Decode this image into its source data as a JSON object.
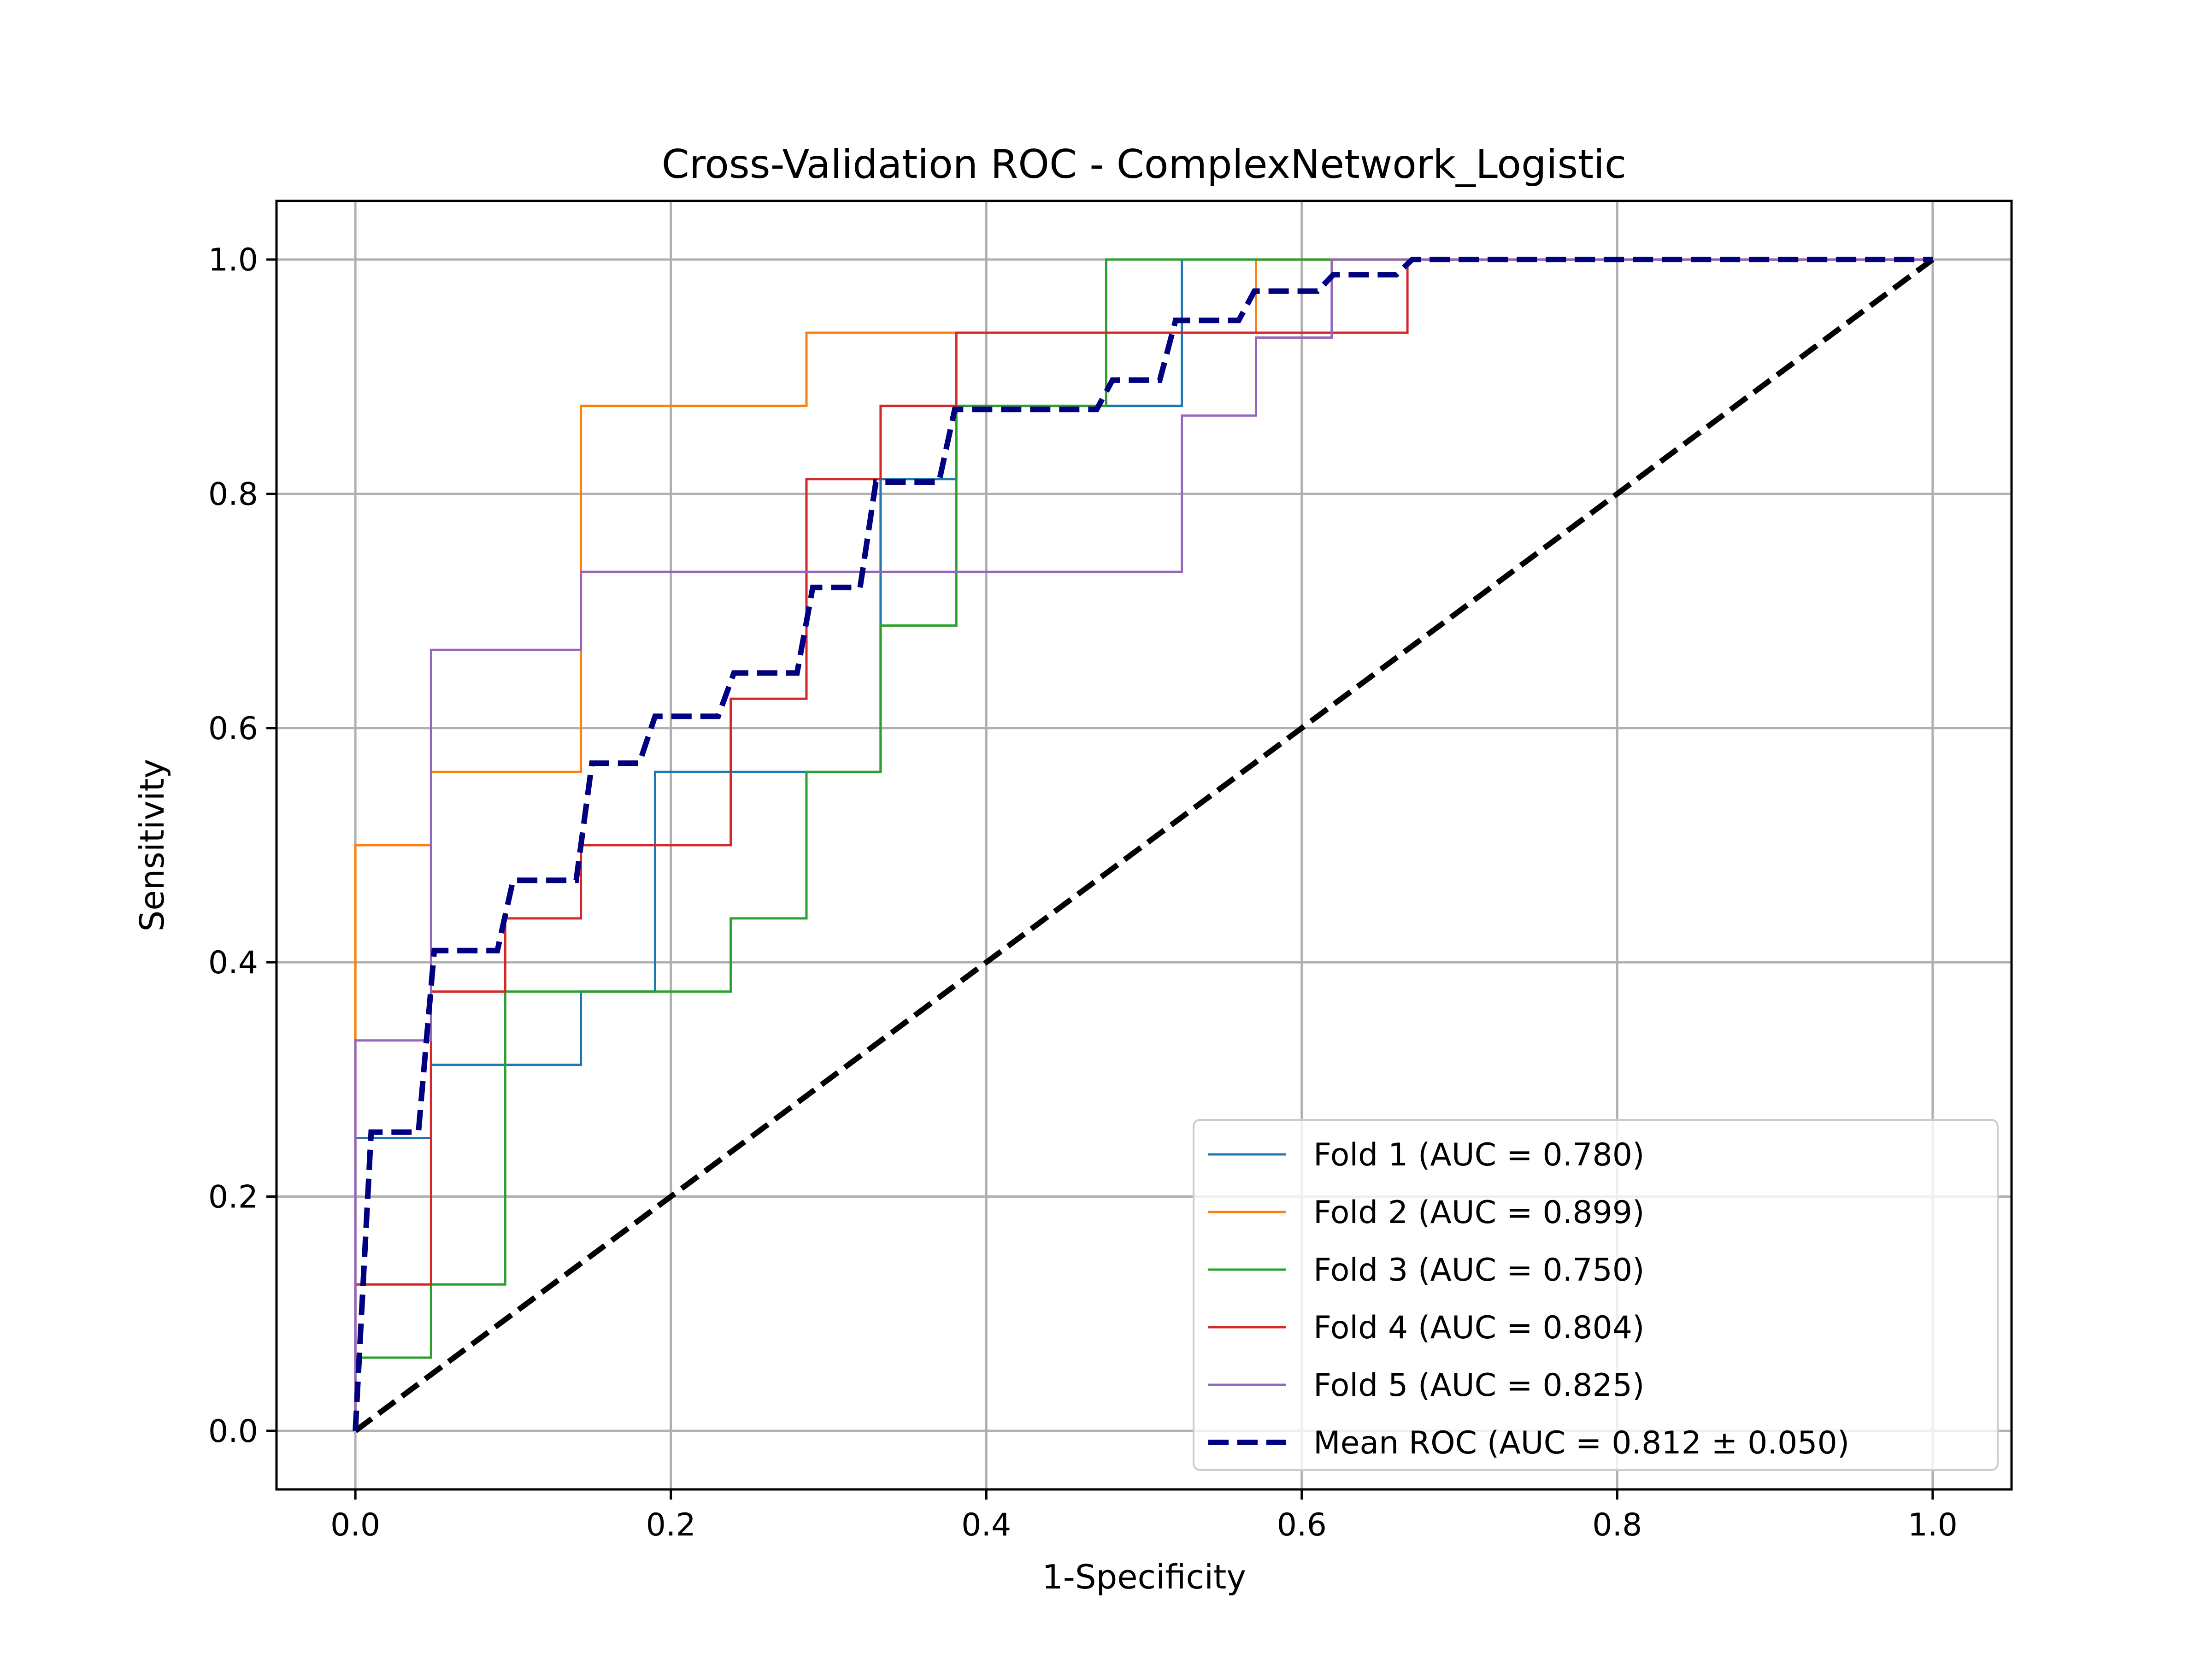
{
  "chart_data": {
    "type": "line",
    "title": "Cross-Validation ROC - ComplexNetwork_Logistic",
    "xlabel": "1-Specificity",
    "ylabel": "Sensitivity",
    "xlim": [
      -0.05,
      1.05
    ],
    "ylim": [
      -0.05,
      1.05
    ],
    "xticks": [
      0.0,
      0.2,
      0.4,
      0.6,
      0.8,
      1.0
    ],
    "yticks": [
      0.0,
      0.2,
      0.4,
      0.6,
      0.8,
      1.0
    ],
    "tick_labels_x": [
      "0.0",
      "0.2",
      "0.4",
      "0.6",
      "0.8",
      "1.0"
    ],
    "tick_labels_y": [
      "0.0",
      "0.2",
      "0.4",
      "0.6",
      "0.8",
      "1.0"
    ],
    "grid": true,
    "legend_position": "bottom-right",
    "series": [
      {
        "name": "Fold 1 (AUC = 0.780)",
        "color": "#1f77b4",
        "style": "solid",
        "x": [
          0,
          0,
          0.048,
          0.048,
          0.143,
          0.143,
          0.19,
          0.19,
          0.333,
          0.333,
          0.381,
          0.381,
          0.524,
          0.524,
          1.0
        ],
        "y": [
          0,
          0.25,
          0.25,
          0.3125,
          0.3125,
          0.375,
          0.375,
          0.5625,
          0.5625,
          0.8125,
          0.8125,
          0.875,
          0.875,
          1.0,
          1.0
        ]
      },
      {
        "name": "Fold 2 (AUC = 0.899)",
        "color": "#ff7f0e",
        "style": "solid",
        "x": [
          0,
          0,
          0.048,
          0.048,
          0.143,
          0.143,
          0.286,
          0.286,
          0.571,
          0.571,
          1.0
        ],
        "y": [
          0,
          0.5,
          0.5,
          0.5625,
          0.5625,
          0.875,
          0.875,
          0.9375,
          0.9375,
          1.0,
          1.0
        ]
      },
      {
        "name": "Fold 3 (AUC = 0.750)",
        "color": "#2ca02c",
        "style": "solid",
        "x": [
          0,
          0,
          0.048,
          0.048,
          0.095,
          0.095,
          0.238,
          0.238,
          0.286,
          0.286,
          0.333,
          0.333,
          0.381,
          0.381,
          0.476,
          0.476,
          1.0
        ],
        "y": [
          0,
          0.0625,
          0.0625,
          0.125,
          0.125,
          0.375,
          0.375,
          0.4375,
          0.4375,
          0.5625,
          0.5625,
          0.6875,
          0.6875,
          0.875,
          0.875,
          1.0,
          1.0
        ]
      },
      {
        "name": "Fold 4 (AUC = 0.804)",
        "color": "#d62728",
        "style": "solid",
        "x": [
          0,
          0,
          0.048,
          0.048,
          0.095,
          0.095,
          0.143,
          0.143,
          0.238,
          0.238,
          0.286,
          0.286,
          0.333,
          0.333,
          0.381,
          0.381,
          0.667,
          0.667,
          1.0
        ],
        "y": [
          0,
          0.125,
          0.125,
          0.375,
          0.375,
          0.4375,
          0.4375,
          0.5,
          0.5,
          0.625,
          0.625,
          0.8125,
          0.8125,
          0.875,
          0.875,
          0.9375,
          0.9375,
          1.0,
          1.0
        ]
      },
      {
        "name": "Fold 5 (AUC = 0.825)",
        "color": "#9467bd",
        "style": "solid",
        "x": [
          0,
          0,
          0.048,
          0.048,
          0.143,
          0.143,
          0.524,
          0.524,
          0.571,
          0.571,
          0.619,
          0.619,
          1.0
        ],
        "y": [
          0,
          0.3333,
          0.3333,
          0.6667,
          0.6667,
          0.7333,
          0.7333,
          0.8667,
          0.8667,
          0.9333,
          0.9333,
          1.0,
          1.0
        ]
      },
      {
        "name": "Mean ROC (AUC = 0.812 ± 0.050)",
        "color": "#000080",
        "style": "dashed",
        "x": [
          0,
          0.01,
          0.04,
          0.05,
          0.09,
          0.1,
          0.14,
          0.15,
          0.18,
          0.19,
          0.23,
          0.24,
          0.28,
          0.29,
          0.32,
          0.33,
          0.37,
          0.38,
          0.47,
          0.48,
          0.51,
          0.52,
          0.56,
          0.57,
          0.61,
          0.62,
          0.66,
          0.67,
          1.0
        ],
        "y": [
          0,
          0.255,
          0.255,
          0.41,
          0.41,
          0.47,
          0.47,
          0.57,
          0.57,
          0.61,
          0.61,
          0.647,
          0.647,
          0.72,
          0.72,
          0.81,
          0.81,
          0.872,
          0.872,
          0.897,
          0.897,
          0.948,
          0.948,
          0.973,
          0.973,
          0.987,
          0.987,
          1.0,
          1.0
        ]
      },
      {
        "name": "",
        "color": "#000000",
        "style": "dashed",
        "x": [
          0,
          1
        ],
        "y": [
          0,
          1
        ]
      }
    ]
  }
}
